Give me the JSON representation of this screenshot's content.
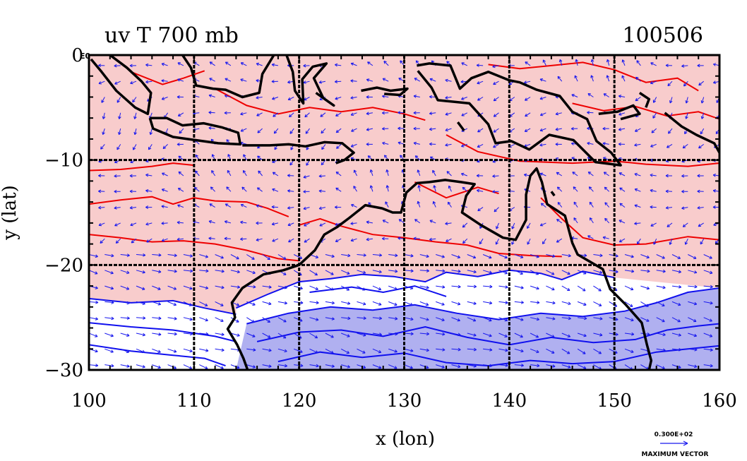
{
  "chart_data": {
    "type": "contour-vector-map",
    "title": "uv T 700 mb",
    "date_label": "100506",
    "xlabel": "x (lon)",
    "ylabel": "y (lat)",
    "xlim": [
      100,
      160
    ],
    "ylim": [
      -30,
      0
    ],
    "x_ticks": [
      100,
      110,
      120,
      130,
      140,
      150,
      160
    ],
    "x_tick_labels": [
      "100",
      "110",
      "120",
      "130",
      "140",
      "150",
      "160"
    ],
    "y_ticks": [
      0,
      -10,
      -20,
      -30
    ],
    "y_tick_labels": [
      "0",
      "−10",
      "−20",
      "−30"
    ],
    "y_tick_suffix": "E0",
    "grid": true,
    "warm_fill_color": "#f8cccc",
    "cold_fill_color": "#b0b0f0",
    "warm_contour_color": "#ee0000",
    "cold_contour_color": "#1010ee",
    "vector_color": "#1818ee",
    "coast_color": "#000000",
    "warm_contours": [
      [
        [
          100,
          -14.2
        ],
        [
          103,
          -13.8
        ],
        [
          106,
          -13.5
        ],
        [
          108,
          -14.2
        ],
        [
          110,
          -13.6
        ],
        [
          112,
          -13.9
        ],
        [
          115,
          -14.0
        ],
        [
          117,
          -14.6
        ],
        [
          119,
          -15.4
        ]
      ],
      [
        [
          100,
          -17.1
        ],
        [
          103,
          -17.4
        ],
        [
          106,
          -17.8
        ],
        [
          109,
          -17.7
        ],
        [
          112,
          -18.0
        ],
        [
          115,
          -18.6
        ],
        [
          118,
          -19.4
        ],
        [
          120,
          -19.6
        ]
      ],
      [
        [
          100,
          -11.0
        ],
        [
          103,
          -10.9
        ],
        [
          106,
          -10.6
        ],
        [
          108,
          -10.3
        ],
        [
          110,
          -10.5
        ]
      ],
      [
        [
          112,
          -3.2
        ],
        [
          115,
          -4.8
        ],
        [
          118,
          -5.6
        ],
        [
          121,
          -5.0
        ],
        [
          124,
          -5.4
        ],
        [
          127,
          -5.0
        ],
        [
          130,
          -5.6
        ],
        [
          132,
          -6.2
        ]
      ],
      [
        [
          104,
          -1.6
        ],
        [
          107,
          -2.8
        ],
        [
          109,
          -2.2
        ],
        [
          111,
          -1.5
        ]
      ],
      [
        [
          134,
          -7.6
        ],
        [
          137,
          -9.2
        ],
        [
          141,
          -10.1
        ],
        [
          146,
          -10.3
        ],
        [
          150,
          -10.1
        ],
        [
          153,
          -10.4
        ],
        [
          157,
          -10.6
        ],
        [
          160,
          -10.3
        ]
      ],
      [
        [
          143,
          -13.6
        ],
        [
          145,
          -15.6
        ],
        [
          147,
          -17.4
        ],
        [
          150,
          -18.1
        ],
        [
          153,
          -18.0
        ],
        [
          157,
          -17.3
        ],
        [
          160,
          -17.6
        ]
      ],
      [
        [
          124,
          -16.3
        ],
        [
          127,
          -17.1
        ],
        [
          130,
          -17.4
        ],
        [
          133,
          -17.8
        ],
        [
          136,
          -18.1
        ],
        [
          139,
          -18.9
        ],
        [
          142,
          -19.1
        ],
        [
          145,
          -19.2
        ]
      ],
      [
        [
          120,
          -16.2
        ],
        [
          122,
          -15.6
        ],
        [
          124,
          -16.3
        ]
      ],
      [
        [
          131,
          -12.1
        ],
        [
          134,
          -13.6
        ],
        [
          137,
          -12.6
        ],
        [
          139,
          -13.2
        ]
      ],
      [
        [
          138,
          -0.9
        ],
        [
          141,
          -1.3
        ],
        [
          144,
          -1.0
        ],
        [
          147,
          -0.7
        ],
        [
          150,
          -1.4
        ],
        [
          153,
          -2.6
        ],
        [
          156,
          -2.2
        ],
        [
          158,
          -3.4
        ]
      ],
      [
        [
          146,
          -4.6
        ],
        [
          149,
          -5.3
        ],
        [
          152,
          -4.9
        ],
        [
          155,
          -5.8
        ],
        [
          158,
          -5.4
        ],
        [
          160,
          -6.1
        ]
      ]
    ],
    "cold_contours": [
      [
        [
          100,
          -23.2
        ],
        [
          104,
          -23.6
        ],
        [
          108,
          -23.4
        ],
        [
          111,
          -24.1
        ],
        [
          114,
          -24.7
        ]
      ],
      [
        [
          100,
          -25.5
        ],
        [
          104,
          -25.9
        ],
        [
          108,
          -26.2
        ],
        [
          112,
          -26.8
        ],
        [
          114,
          -27.3
        ]
      ],
      [
        [
          100,
          -27.6
        ],
        [
          104,
          -28.2
        ],
        [
          108,
          -28.6
        ],
        [
          111,
          -28.9
        ],
        [
          113,
          -29.6
        ]
      ],
      [
        [
          114,
          -24.1
        ],
        [
          117,
          -22.8
        ],
        [
          120,
          -21.6
        ],
        [
          123,
          -21.3
        ],
        [
          126,
          -20.9
        ],
        [
          129,
          -21.1
        ],
        [
          132,
          -21.6
        ],
        [
          134,
          -20.7
        ],
        [
          137,
          -21.1
        ],
        [
          140,
          -20.5
        ],
        [
          143,
          -20.8
        ],
        [
          145,
          -21.4
        ],
        [
          147,
          -20.6
        ],
        [
          150,
          -21.2
        ]
      ],
      [
        [
          115,
          -25.6
        ],
        [
          119,
          -24.6
        ],
        [
          123,
          -24.0
        ],
        [
          127,
          -24.3
        ],
        [
          131,
          -23.8
        ],
        [
          135,
          -24.6
        ],
        [
          139,
          -25.2
        ],
        [
          143,
          -24.6
        ],
        [
          147,
          -24.9
        ],
        [
          151,
          -24.4
        ],
        [
          154,
          -23.6
        ],
        [
          157,
          -22.6
        ],
        [
          160,
          -22.2
        ]
      ],
      [
        [
          116,
          -27.3
        ],
        [
          120,
          -26.4
        ],
        [
          124,
          -26.2
        ],
        [
          128,
          -26.8
        ],
        [
          132,
          -25.9
        ],
        [
          136,
          -26.9
        ],
        [
          140,
          -27.6
        ],
        [
          144,
          -26.9
        ],
        [
          148,
          -27.4
        ],
        [
          152,
          -27.1
        ],
        [
          155,
          -26.2
        ],
        [
          158,
          -25.8
        ],
        [
          160,
          -25.6
        ]
      ],
      [
        [
          118,
          -29.2
        ],
        [
          122,
          -28.3
        ],
        [
          126,
          -28.8
        ],
        [
          130,
          -28.4
        ],
        [
          134,
          -29.3
        ],
        [
          138,
          -29.6
        ],
        [
          142,
          -29.1
        ],
        [
          146,
          -29.4
        ],
        [
          150,
          -29.2
        ],
        [
          154,
          -28.3
        ],
        [
          157,
          -28.0
        ],
        [
          160,
          -27.7
        ]
      ],
      [
        [
          121,
          -22.6
        ],
        [
          125,
          -22.1
        ],
        [
          128,
          -22.6
        ],
        [
          131,
          -22.0
        ],
        [
          134,
          -23.0
        ]
      ]
    ],
    "coastlines": [
      [
        [
          120.0,
          -20.0
        ],
        [
          118.5,
          -20.5
        ],
        [
          116.6,
          -20.9
        ],
        [
          114.6,
          -22.2
        ],
        [
          113.6,
          -23.6
        ],
        [
          113.9,
          -25.0
        ],
        [
          113.2,
          -26.1
        ],
        [
          114.1,
          -27.6
        ],
        [
          114.7,
          -28.9
        ],
        [
          115.1,
          -30.0
        ]
      ],
      [
        [
          120.0,
          -20.0
        ],
        [
          121.5,
          -18.6
        ],
        [
          122.4,
          -17.1
        ],
        [
          123.6,
          -16.4
        ],
        [
          124.8,
          -15.5
        ],
        [
          126.3,
          -14.3
        ],
        [
          127.9,
          -14.6
        ],
        [
          128.9,
          -15.0
        ],
        [
          129.7,
          -15.0
        ],
        [
          130.2,
          -13.1
        ],
        [
          131.2,
          -12.2
        ],
        [
          132.4,
          -12.1
        ],
        [
          133.9,
          -11.9
        ],
        [
          135.4,
          -12.1
        ],
        [
          136.7,
          -12.3
        ],
        [
          135.9,
          -13.4
        ],
        [
          135.5,
          -15.0
        ],
        [
          137.3,
          -16.2
        ],
        [
          139.4,
          -17.4
        ],
        [
          140.6,
          -17.6
        ],
        [
          141.6,
          -15.7
        ],
        [
          141.6,
          -13.3
        ],
        [
          142.0,
          -11.5
        ],
        [
          142.6,
          -10.8
        ],
        [
          143.1,
          -12.1
        ],
        [
          143.6,
          -14.2
        ],
        [
          145.3,
          -15.3
        ],
        [
          146.0,
          -17.9
        ],
        [
          146.5,
          -19.0
        ],
        [
          148.9,
          -20.4
        ],
        [
          149.6,
          -22.3
        ],
        [
          151.1,
          -23.8
        ],
        [
          152.6,
          -25.5
        ],
        [
          153.1,
          -27.6
        ],
        [
          153.5,
          -29.1
        ],
        [
          153.3,
          -30.0
        ]
      ],
      [
        [
          102.0,
          0.0
        ],
        [
          103.6,
          -1.2
        ],
        [
          105.0,
          -2.5
        ],
        [
          105.9,
          -3.6
        ],
        [
          105.6,
          -5.6
        ],
        [
          104.4,
          -5.0
        ],
        [
          102.6,
          -3.4
        ],
        [
          101.2,
          -1.6
        ],
        [
          100.2,
          -0.4
        ]
      ],
      [
        [
          105.8,
          -6.0
        ],
        [
          107.4,
          -6.0
        ],
        [
          108.9,
          -6.7
        ],
        [
          110.9,
          -6.5
        ],
        [
          112.7,
          -6.9
        ],
        [
          114.2,
          -7.4
        ],
        [
          114.4,
          -8.5
        ],
        [
          112.3,
          -8.4
        ],
        [
          110.1,
          -8.1
        ],
        [
          108.0,
          -7.8
        ],
        [
          106.1,
          -7.0
        ],
        [
          105.8,
          -6.0
        ]
      ],
      [
        [
          108.9,
          0.0
        ],
        [
          109.7,
          -1.2
        ],
        [
          110.2,
          -2.9
        ],
        [
          111.8,
          -3.2
        ],
        [
          113.0,
          -3.3
        ],
        [
          114.6,
          -4.0
        ],
        [
          116.2,
          -3.6
        ],
        [
          116.5,
          -1.8
        ],
        [
          117.6,
          0.0
        ]
      ],
      [
        [
          118.8,
          0.0
        ],
        [
          119.4,
          -1.6
        ],
        [
          119.6,
          -3.4
        ],
        [
          120.4,
          -4.6
        ],
        [
          120.3,
          -2.3
        ],
        [
          121.3,
          -1.1
        ],
        [
          122.6,
          -0.8
        ],
        [
          121.4,
          -2.2
        ],
        [
          122.3,
          -4.1
        ],
        [
          123.3,
          -4.8
        ],
        [
          121.6,
          -3.6
        ]
      ],
      [
        [
          114.6,
          -8.6
        ],
        [
          116.0,
          -8.6
        ],
        [
          117.2,
          -8.6
        ],
        [
          119.0,
          -8.5
        ],
        [
          120.6,
          -8.7
        ],
        [
          122.4,
          -8.3
        ],
        [
          124.1,
          -8.4
        ],
        [
          125.2,
          -9.3
        ],
        [
          124.3,
          -10.0
        ],
        [
          123.5,
          -10.3
        ]
      ],
      [
        [
          125.9,
          -3.4
        ],
        [
          127.4,
          -3.1
        ],
        [
          128.7,
          -3.4
        ],
        [
          130.3,
          -3.2
        ],
        [
          129.6,
          -3.8
        ],
        [
          128.1,
          -3.7
        ]
      ],
      [
        [
          131.2,
          -1.0
        ],
        [
          132.4,
          -0.8
        ],
        [
          134.4,
          -1.0
        ],
        [
          135.3,
          -3.2
        ],
        [
          136.4,
          -2.2
        ],
        [
          138.0,
          -1.6
        ],
        [
          140.0,
          -2.4
        ],
        [
          141.0,
          -2.6
        ],
        [
          142.6,
          -3.3
        ],
        [
          144.8,
          -3.9
        ],
        [
          146.0,
          -5.4
        ],
        [
          147.4,
          -6.1
        ],
        [
          148.3,
          -8.2
        ],
        [
          149.7,
          -9.3
        ],
        [
          150.6,
          -10.5
        ],
        [
          148.2,
          -10.2
        ],
        [
          146.1,
          -8.1
        ],
        [
          143.8,
          -7.6
        ],
        [
          141.9,
          -9.0
        ],
        [
          140.2,
          -8.2
        ],
        [
          138.7,
          -8.4
        ],
        [
          138.0,
          -6.6
        ],
        [
          136.2,
          -4.6
        ],
        [
          133.2,
          -4.3
        ],
        [
          132.6,
          -3.1
        ],
        [
          131.3,
          -1.5
        ]
      ],
      [
        [
          148.5,
          -5.6
        ],
        [
          150.3,
          -5.4
        ],
        [
          151.8,
          -4.8
        ],
        [
          152.4,
          -5.6
        ],
        [
          150.6,
          -6.1
        ]
      ],
      [
        [
          152.4,
          -3.6
        ],
        [
          153.3,
          -4.2
        ],
        [
          153.0,
          -5.0
        ]
      ],
      [
        [
          154.8,
          -5.5
        ],
        [
          156.4,
          -6.8
        ],
        [
          157.8,
          -7.6
        ],
        [
          159.5,
          -8.4
        ],
        [
          160.0,
          -9.3
        ]
      ],
      [
        [
          135.1,
          -6.4
        ],
        [
          135.7,
          -7.2
        ]
      ],
      [
        [
          144.0,
          -13.0
        ],
        [
          144.3,
          -13.4
        ]
      ]
    ],
    "max_vector_value": "0.300E+02",
    "max_vector_label": "MAXIMUM VECTOR"
  }
}
